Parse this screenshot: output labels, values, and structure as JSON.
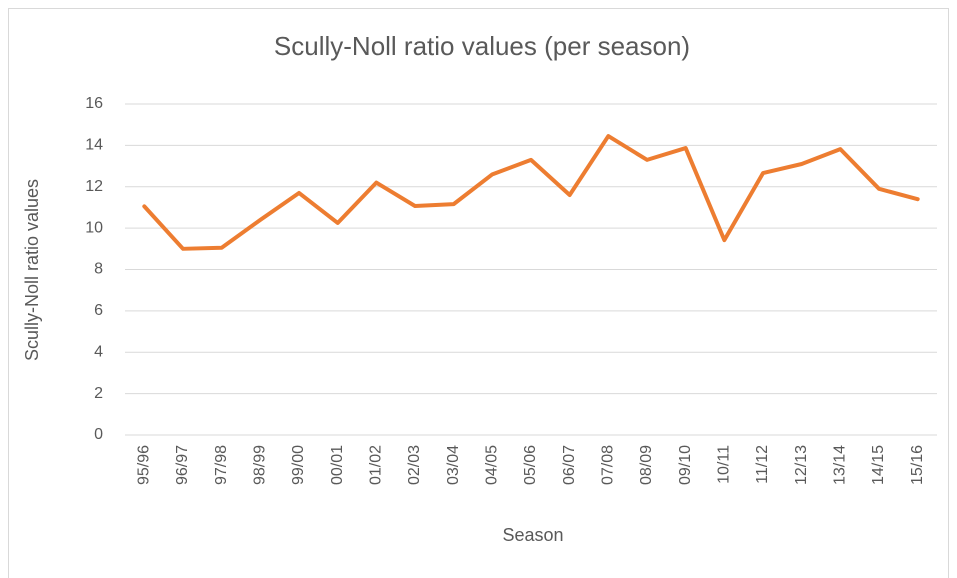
{
  "chart_data": {
    "type": "line",
    "title": "Scully-Noll ratio values (per season)",
    "x_label": "Season",
    "y_label": "Scully-Noll ratio values",
    "categories": [
      "95/96",
      "96/97",
      "97/98",
      "98/99",
      "99/00",
      "00/01",
      "01/02",
      "02/03",
      "03/04",
      "04/05",
      "05/06",
      "06/07",
      "07/08",
      "08/09",
      "09/10",
      "10/11",
      "11/12",
      "12/13",
      "13/14",
      "14/15",
      "15/16"
    ],
    "series": [
      {
        "name": "Scully-Noll ratio values",
        "color": "#ed7d31",
        "values": [
          11.05,
          9.0,
          9.05,
          10.4,
          11.7,
          10.25,
          12.2,
          11.07,
          11.16,
          12.6,
          13.3,
          11.6,
          14.45,
          13.3,
          13.87,
          9.42,
          12.66,
          13.1,
          13.82,
          11.9,
          11.4
        ]
      }
    ],
    "ylim": [
      0,
      16
    ],
    "yticks": [
      0,
      2,
      4,
      6,
      8,
      10,
      12,
      14,
      16
    ],
    "grid": true
  }
}
